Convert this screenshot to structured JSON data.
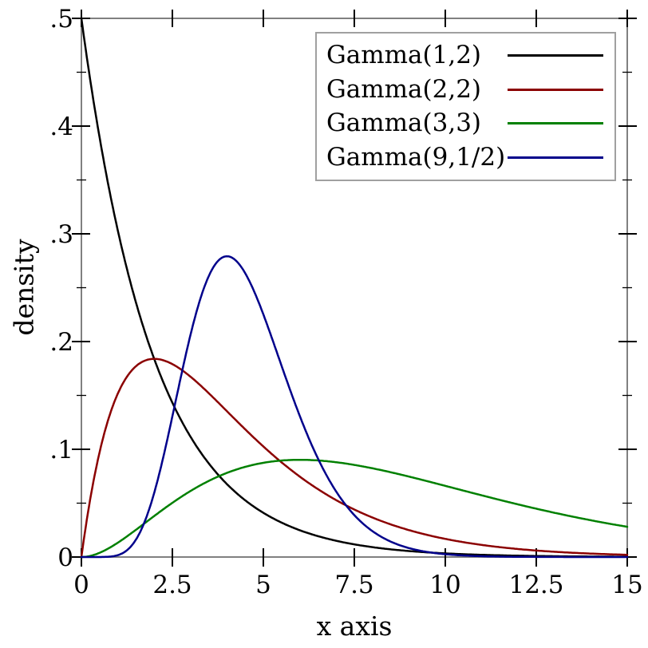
{
  "chart_data": {
    "type": "line",
    "title": "",
    "xlabel": "x axis",
    "ylabel": "density",
    "xlim": [
      0,
      15
    ],
    "ylim": [
      0,
      0.5
    ],
    "grid": false,
    "frame_color": "#808080",
    "tick_color": "#000000",
    "legend_position": "top-right-inside",
    "legend_border_color": "#a0a0a0",
    "x_major_ticks": [
      0,
      2.5,
      5,
      7.5,
      10,
      12.5,
      15
    ],
    "x_tick_labels": [
      "0",
      "2.5",
      "5",
      "7.5",
      "10",
      "12.5",
      "15"
    ],
    "y_major_ticks": [
      0,
      0.1,
      0.2,
      0.3,
      0.4,
      0.5
    ],
    "y_tick_labels": [
      "0",
      ".1",
      ".2",
      ".3",
      ".4",
      ".5"
    ],
    "y_minor_ticks": [
      0.05,
      0.15,
      0.25,
      0.35,
      0.45
    ],
    "series": [
      {
        "name": "Gamma(1,2)",
        "distribution": "gamma",
        "shape": 1,
        "scale": 2,
        "color": "#000000",
        "value_at_x0": 0.5,
        "peak": {
          "x": 0,
          "y": 0.5
        }
      },
      {
        "name": "Gamma(2,2)",
        "distribution": "gamma",
        "shape": 2,
        "scale": 2,
        "color": "#8b0000",
        "peak": {
          "x": 2,
          "y": 0.184
        }
      },
      {
        "name": "Gamma(3,3)",
        "distribution": "gamma",
        "shape": 3,
        "scale": 3,
        "color": "#008000",
        "peak": {
          "x": 6,
          "y": 0.09
        }
      },
      {
        "name": "Gamma(9,1/2)",
        "distribution": "gamma",
        "shape": 9,
        "scale": 0.5,
        "color": "#00008b",
        "peak": {
          "x": 4,
          "y": 0.279
        }
      }
    ]
  }
}
